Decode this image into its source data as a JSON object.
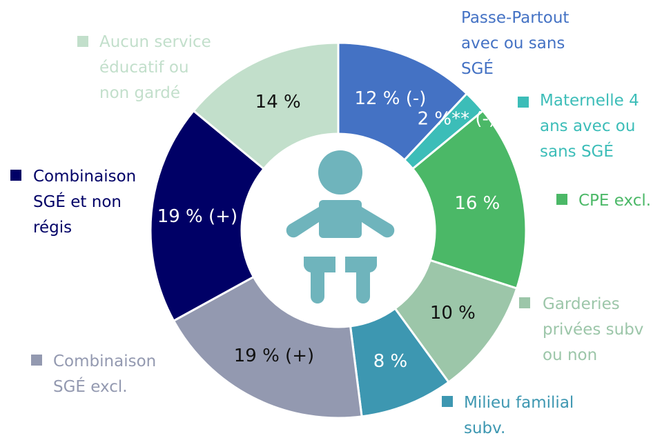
{
  "chart_data": {
    "type": "donut",
    "categories": [
      "Passe-Partout avec ou sans SGÉ",
      "Maternelle 4 ans avec ou sans SGÉ",
      "CPE excl.",
      "Garderies privées subv ou non",
      "Milieu familial subv.",
      "Combinaison SGÉ excl.",
      "Combinaison SGÉ et non régis",
      "Aucun service éducatif ou non gardé"
    ],
    "values": [
      12,
      2,
      16,
      10,
      8,
      19,
      19,
      14
    ],
    "value_labels": [
      "12 % (-)",
      "2 %** (-)",
      "16 %",
      "10 %",
      "8 %",
      "19 % (+)",
      "19 % (+)",
      "14 %"
    ],
    "colors": [
      "#4472c4",
      "#3cbdb8",
      "#4bb867",
      "#9cc6a9",
      "#3d97b1",
      "#9399b0",
      "#000066",
      "#c2dfcb"
    ]
  }
}
